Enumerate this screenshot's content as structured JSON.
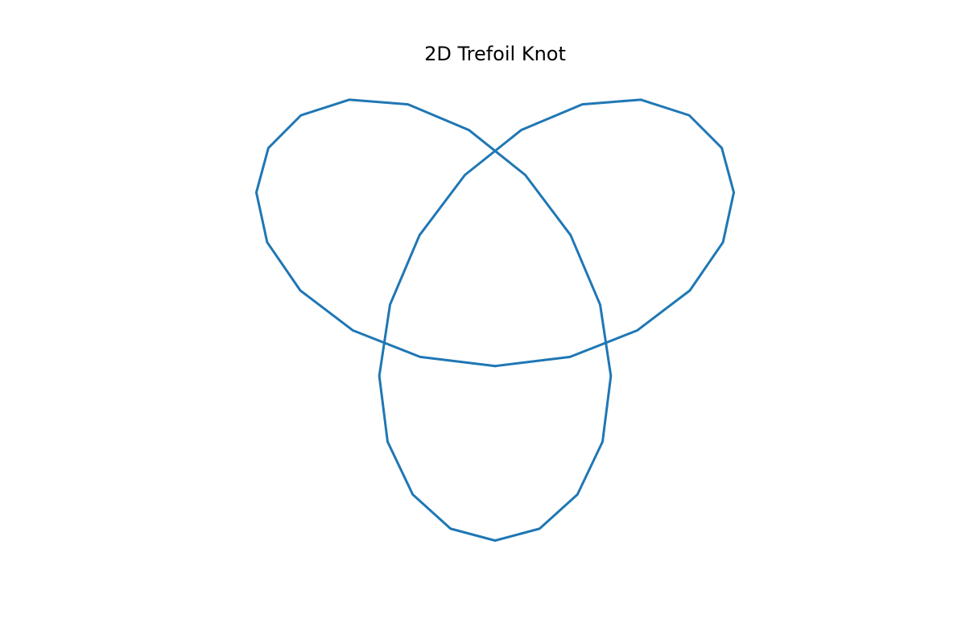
{
  "chart_data": {
    "type": "line",
    "title": "2D Trefoil Knot",
    "x": [
      0,
      0.858,
      1.628,
      2.232,
      2.612,
      2.736,
      2.598,
      2.225,
      1.669,
      1,
      0.301,
      -0.346,
      -0.866,
      -1.204,
      -1.327,
      -1.232,
      -0.944,
      -0.51,
      0,
      0.51,
      0.944,
      1.232,
      1.327,
      1.204,
      0.866,
      0.346,
      -0.301,
      -1,
      -1.669,
      -2.225,
      -2.598,
      -2.736,
      -2.612,
      -2.232,
      -1.628,
      -0.858,
      0
    ],
    "series": [
      {
        "color": "#1f77b4",
        "values": [
          -1,
          -0.895,
          -0.592,
          -0.134,
          0.419,
          0.99,
          1.5,
          1.874,
          2.053,
          2,
          1.706,
          1.19,
          0.5,
          -0.296,
          -1.113,
          -1.866,
          -2.472,
          -2.864,
          -3,
          -2.864,
          -2.472,
          -1.866,
          -1.113,
          -0.296,
          0.5,
          1.19,
          1.706,
          2,
          2.053,
          1.874,
          1.5,
          0.99,
          0.419,
          -0.134,
          -0.592,
          -0.895,
          -1
        ]
      }
    ],
    "xlim": [
      -4.29,
      4.29
    ],
    "ylim": [
      -3.3,
      2.31
    ],
    "axes_visible": false
  }
}
